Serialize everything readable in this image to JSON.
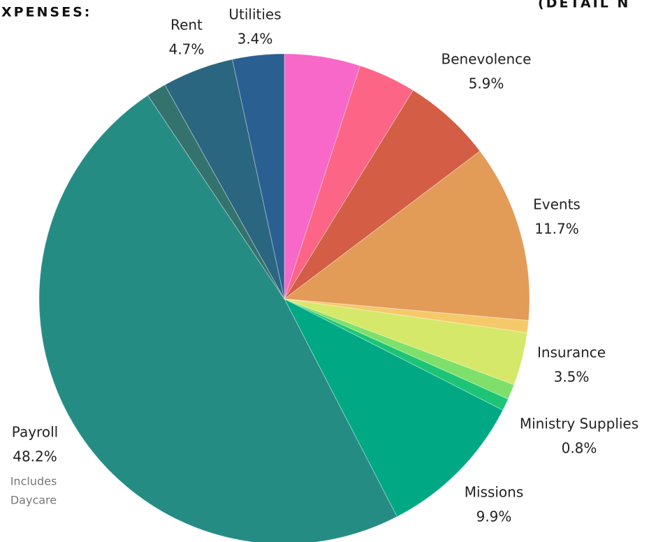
{
  "chart_data": {
    "type": "pie",
    "title": "EXPENSES:",
    "subtitle": "(DETAIL N",
    "categories": [
      null,
      null,
      "Benevolence",
      "Events",
      null,
      "Insurance",
      null,
      "Ministry Supplies",
      "Missions",
      "Payroll",
      null,
      "Rent",
      "Utilities"
    ],
    "values": [
      5.0,
      3.8,
      5.9,
      11.7,
      0.8,
      3.5,
      1.0,
      0.8,
      9.9,
      48.2,
      1.3,
      4.7,
      3.4
    ],
    "value_labels": [
      null,
      null,
      "5.9%",
      "11.7%",
      null,
      "3.5%",
      null,
      "0.8%",
      "9.9%",
      "48.2%",
      null,
      "4.7%",
      "3.4%"
    ],
    "colors": [
      "#f868c8",
      "#fc6585",
      "#d35d45",
      "#e39b58",
      "#f5c96a",
      "#d6e86a",
      "#7ee06a",
      "#1dc476",
      "#00a884",
      "#258c84",
      "#34726e",
      "#2a6680",
      "#2a5f91"
    ],
    "annotation": [
      "Includes",
      "Daycare"
    ]
  }
}
